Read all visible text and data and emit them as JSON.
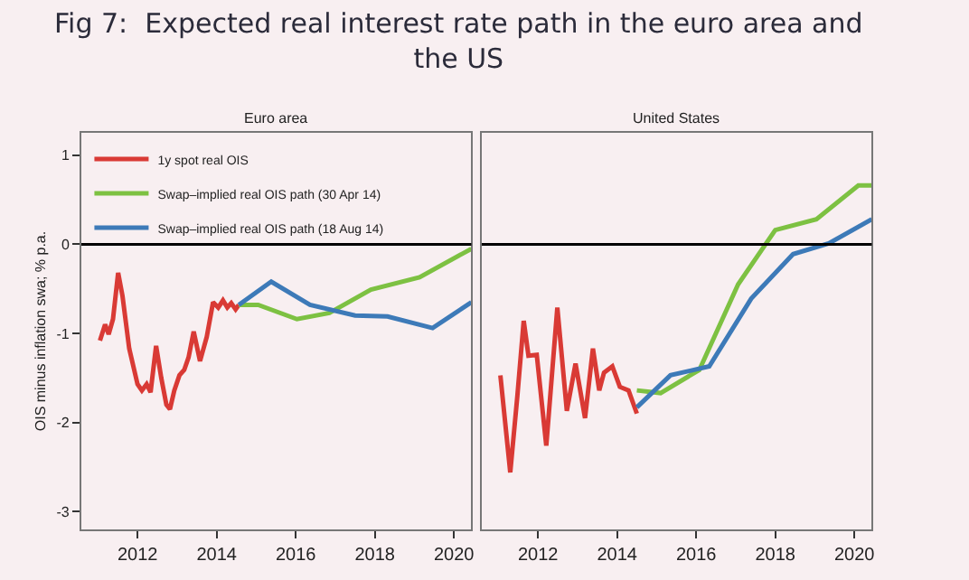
{
  "chart_data": [
    {
      "type": "line",
      "title": "Euro area",
      "annotations": [
        "Fig 7:  Expected real interest rate path in the euro area and the US"
      ],
      "ylabel": "OIS minus inflation swa; % p.a.",
      "xlim": [
        2010.58,
        2020.44
      ],
      "xticks": [
        2012,
        2014,
        2016,
        2018,
        2020
      ],
      "ylim": [
        -3.2,
        1.25
      ],
      "yticks": [
        -3,
        -2,
        -1,
        0,
        1
      ],
      "grid": false,
      "legend": "top left",
      "marker": "none",
      "line_style": "solid",
      "ref_lines": [
        {
          "axis": "y",
          "value": 0,
          "color": "#000000"
        }
      ],
      "series": [
        {
          "name": "1y spot real OIS",
          "color": "#d93a35",
          "x": [
            2011.05,
            2011.18,
            2011.27,
            2011.38,
            2011.51,
            2011.62,
            2011.79,
            2012.0,
            2012.11,
            2012.23,
            2012.33,
            2012.47,
            2012.6,
            2012.73,
            2012.82,
            2012.93,
            2013.06,
            2013.18,
            2013.29,
            2013.42,
            2013.58,
            2013.75,
            2013.91,
            2014.04,
            2014.16,
            2014.27,
            2014.37,
            2014.48,
            2014.56
          ],
          "values": [
            -1.08,
            -0.9,
            -1.01,
            -0.84,
            -0.32,
            -0.58,
            -1.17,
            -1.57,
            -1.64,
            -1.57,
            -1.66,
            -1.14,
            -1.5,
            -1.8,
            -1.85,
            -1.64,
            -1.47,
            -1.41,
            -1.27,
            -0.98,
            -1.31,
            -1.04,
            -0.65,
            -0.71,
            -0.63,
            -0.71,
            -0.66,
            -0.73,
            -0.68
          ]
        },
        {
          "name": "Swap–implied real OIS path (30 Apr 14)",
          "color": "#7dc142",
          "x": [
            2014.56,
            2015.05,
            2016.03,
            2016.85,
            2017.9,
            2019.13,
            2020.44
          ],
          "values": [
            -0.68,
            -0.68,
            -0.84,
            -0.77,
            -0.51,
            -0.37,
            -0.05
          ]
        },
        {
          "name": "Swap–implied real OIS path (18 Aug 14)",
          "color": "#3d7ab8",
          "x": [
            2014.56,
            2015.38,
            2016.36,
            2017.5,
            2018.32,
            2019.46,
            2020.44
          ],
          "values": [
            -0.68,
            -0.42,
            -0.68,
            -0.8,
            -0.81,
            -0.94,
            -0.65
          ]
        }
      ]
    },
    {
      "type": "line",
      "title": "United States",
      "xlim": [
        2010.58,
        2020.44
      ],
      "xticks": [
        2012,
        2014,
        2016,
        2018,
        2020
      ],
      "ylim": [
        -3.2,
        1.25
      ],
      "yticks": [
        -3,
        -2,
        -1,
        0,
        1
      ],
      "tick_labels": "x",
      "grid": false,
      "marker": "none",
      "line_style": "solid",
      "ref_lines": [
        {
          "axis": "y",
          "value": 0,
          "color": "#000000"
        }
      ],
      "series": [
        {
          "color": "#d93a35",
          "x": [
            2011.05,
            2011.3,
            2011.48,
            2011.64,
            2011.76,
            2011.97,
            2012.21,
            2012.49,
            2012.73,
            2012.95,
            2013.19,
            2013.39,
            2013.55,
            2013.67,
            2013.88,
            2014.07,
            2014.29,
            2014.5
          ],
          "values": [
            -1.47,
            -2.56,
            -1.7,
            -0.86,
            -1.25,
            -1.24,
            -2.26,
            -0.71,
            -1.87,
            -1.34,
            -1.95,
            -1.17,
            -1.64,
            -1.44,
            -1.37,
            -1.6,
            -1.64,
            -1.9
          ]
        },
        {
          "color": "#7dc142",
          "x": [
            2014.5,
            2015.1,
            2016.08,
            2017.06,
            2018.0,
            2019.04,
            2020.1,
            2020.44
          ],
          "values": [
            -1.64,
            -1.67,
            -1.41,
            -0.45,
            0.16,
            0.28,
            0.66,
            0.66
          ]
        },
        {
          "color": "#3d7ab8",
          "x": [
            2014.5,
            2015.35,
            2016.33,
            2017.39,
            2018.45,
            2019.35,
            2020.44
          ],
          "values": [
            -1.83,
            -1.47,
            -1.37,
            -0.61,
            -0.11,
            0.01,
            0.28
          ]
        }
      ]
    }
  ]
}
